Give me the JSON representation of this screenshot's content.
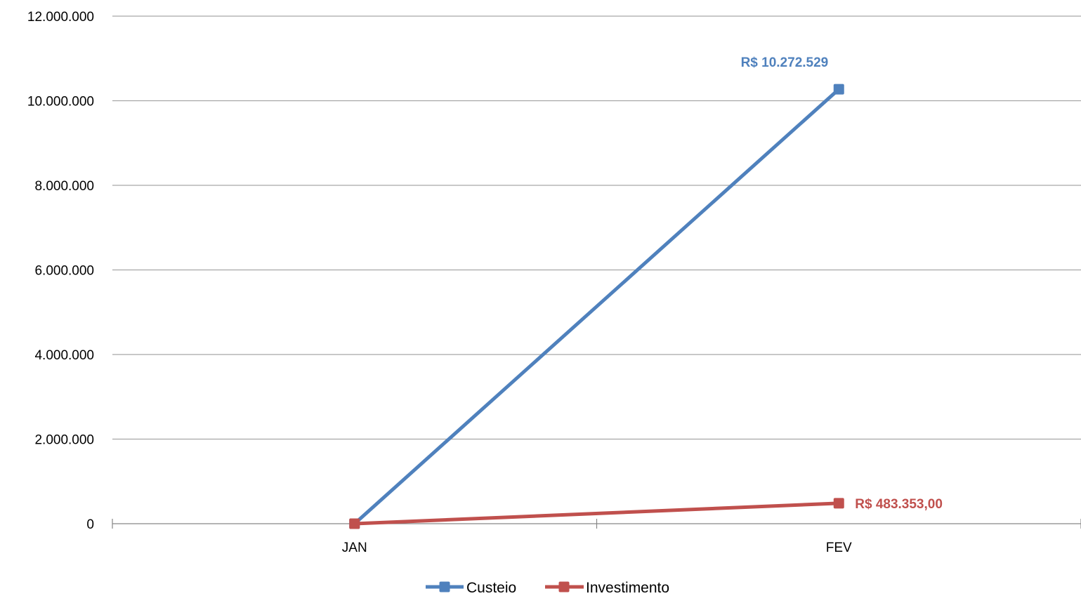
{
  "chart_data": {
    "type": "line",
    "categories": [
      "JAN",
      "FEV"
    ],
    "y_ticks": [
      "0",
      "2.000.000",
      "4.000.000",
      "6.000.000",
      "8.000.000",
      "10.000.000",
      "12.000.000"
    ],
    "ylim": [
      0,
      12000000
    ],
    "grid": "horizontal",
    "legend_position": "bottom",
    "series": [
      {
        "name": "Custeio",
        "color": "#4F81BD",
        "values": [
          0,
          10272529
        ],
        "data_labels": [
          "",
          "R$ 10.272.529"
        ]
      },
      {
        "name": "Investimento",
        "color": "#C0504D",
        "values": [
          0,
          483353
        ],
        "data_labels": [
          "",
          "R$ 483.353,00"
        ]
      }
    ]
  }
}
